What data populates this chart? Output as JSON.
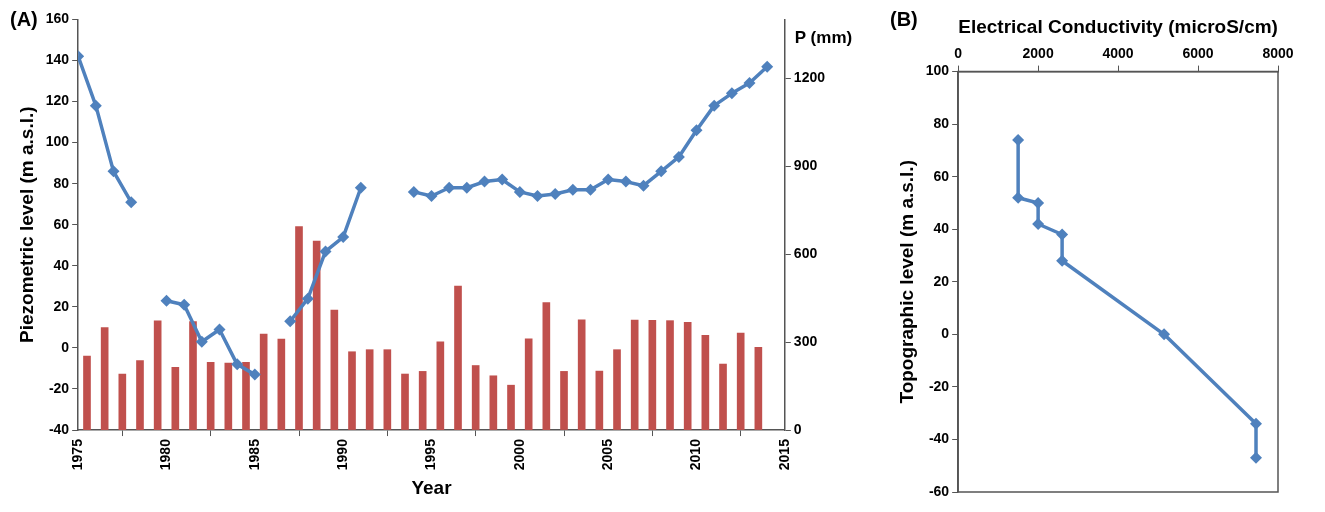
{
  "chart_data": [
    {
      "type": "bar",
      "title": "(A)",
      "xlabel": "Year",
      "ylabel": "Piezometric level (m a.s.l.)",
      "y2label": "P (mm)",
      "xlim": [
        1975,
        2015
      ],
      "xticks": [
        1975,
        1980,
        1985,
        1990,
        1995,
        2000,
        2005,
        2010,
        2015
      ],
      "ylim": [
        -40,
        160
      ],
      "yticks": [
        -40,
        -20,
        0,
        20,
        40,
        60,
        80,
        100,
        120,
        140,
        160
      ],
      "y2lim": [
        0,
        1400
      ],
      "y2ticks": [
        0,
        300,
        600,
        900,
        1200
      ],
      "grid": false,
      "legend": false,
      "series": [
        {
          "axis": "y2",
          "color": "#c0504d",
          "x": [
            1975.5,
            1976.5,
            1977.5,
            1978.5,
            1979.5,
            1980.5,
            1981.5,
            1982.5,
            1983.5,
            1984.5,
            1985.5,
            1986.5,
            1987.5,
            1988.5,
            1989.5,
            1990.5,
            1991.5,
            1992.5,
            1993.5,
            1994.5,
            1995.5,
            1996.5,
            1997.5,
            1998.5,
            1999.5,
            2000.5,
            2001.5,
            2002.5,
            2003.5,
            2004.5,
            2005.5,
            2006.5,
            2007.5,
            2008.5,
            2009.5,
            2010.5,
            2011.5,
            2012.5,
            2013.5
          ],
          "values": [
            252,
            349,
            191,
            237,
            372,
            214,
            370,
            231,
            228,
            231,
            327,
            310,
            694,
            644,
            409,
            267,
            274,
            274,
            191,
            200,
            301,
            491,
            220,
            185,
            153,
            311,
            435,
            200,
            376,
            201,
            274,
            375,
            374,
            373,
            367,
            323,
            225,
            331,
            282
          ]
        },
        {
          "type": "line",
          "axis": "y",
          "color": "#4f81bd",
          "marker": "diamond",
          "line_style": "solid",
          "x": [
            1975,
            1976,
            1977,
            1978,
            1979,
            1980,
            1981,
            1982,
            1983,
            1984,
            1985,
            1986,
            1987,
            1988,
            1989,
            1990,
            1991,
            1992,
            1993,
            1994,
            1995,
            1996,
            1997,
            1998,
            1999,
            2000,
            2001,
            2002,
            2003,
            2004,
            2005,
            2006,
            2007,
            2008,
            2009,
            2010,
            2011,
            2012,
            2013,
            2014
          ],
          "values": [
            142,
            118,
            86,
            71,
            null,
            23,
            21,
            3,
            9,
            -8,
            -13,
            null,
            13,
            24,
            47,
            54,
            78,
            null,
            null,
            76,
            74,
            78,
            78,
            81,
            82,
            76,
            74,
            75,
            77,
            77,
            82,
            81,
            79,
            86,
            93,
            106,
            118,
            124,
            129,
            137
          ]
        }
      ]
    },
    {
      "type": "line",
      "title": "(B)",
      "xlabel": "Electrical Conductivity (microS/cm)",
      "ylabel": "Topographic level (m a.s.l.)",
      "xlim": [
        0,
        8000
      ],
      "xticks": [
        0,
        2000,
        4000,
        6000,
        8000
      ],
      "ylim": [
        -60,
        100
      ],
      "yticks": [
        -60,
        -40,
        -20,
        0,
        20,
        40,
        60,
        80,
        100
      ],
      "grid": false,
      "legend": false,
      "marker": "diamond",
      "line_style": "solid",
      "series": [
        {
          "color": "#4f81bd",
          "x": [
            1500,
            1500,
            2000,
            2000,
            2600,
            2600,
            5150,
            7450,
            7450
          ],
          "values": [
            74,
            52,
            50,
            42,
            38,
            28,
            0,
            -34,
            -47
          ]
        }
      ]
    }
  ]
}
